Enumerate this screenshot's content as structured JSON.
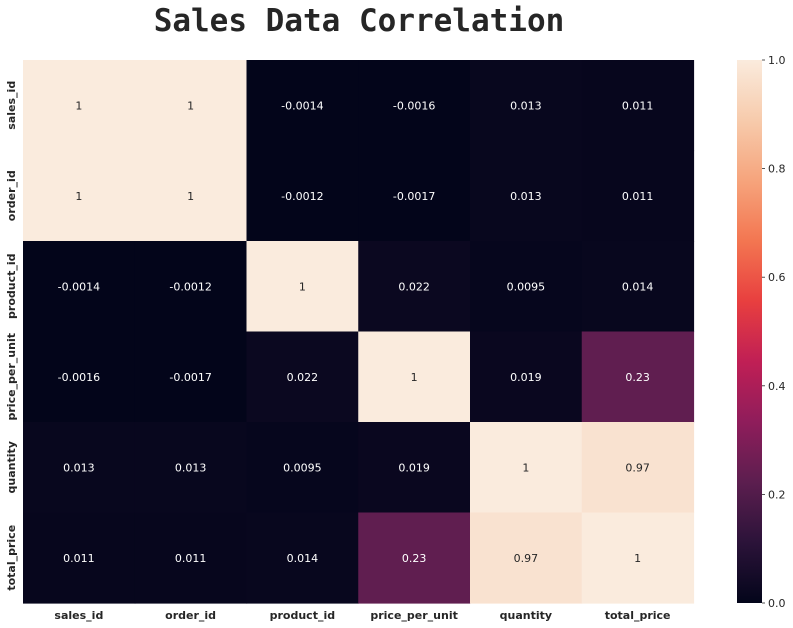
{
  "chart_data": {
    "type": "heatmap",
    "title": "Sales Data Correlation",
    "xlabel": "",
    "ylabel": "",
    "x_categories": [
      "sales_id",
      "order_id",
      "product_id",
      "price_per_unit",
      "quantity",
      "total_price"
    ],
    "y_categories": [
      "sales_id",
      "order_id",
      "product_id",
      "price_per_unit",
      "quantity",
      "total_price"
    ],
    "values": [
      [
        1,
        1,
        -0.0014,
        -0.0016,
        0.013,
        0.011
      ],
      [
        1,
        1,
        -0.0012,
        -0.0017,
        0.013,
        0.011
      ],
      [
        -0.0014,
        -0.0012,
        1,
        0.022,
        0.0095,
        0.014
      ],
      [
        -0.0016,
        -0.0017,
        0.022,
        1,
        0.019,
        0.23
      ],
      [
        0.013,
        0.013,
        0.0095,
        0.019,
        1,
        0.97
      ],
      [
        0.011,
        0.011,
        0.014,
        0.23,
        0.97,
        1
      ]
    ],
    "value_labels": [
      [
        "1",
        "1",
        "-0.0014",
        "-0.0016",
        "0.013",
        "0.011"
      ],
      [
        "1",
        "1",
        "-0.0012",
        "-0.0017",
        "0.013",
        "0.011"
      ],
      [
        "-0.0014",
        "-0.0012",
        "1",
        "0.022",
        "0.0095",
        "0.014"
      ],
      [
        "-0.0016",
        "-0.0017",
        "0.022",
        "1",
        "0.019",
        "0.23"
      ],
      [
        "0.013",
        "0.013",
        "0.0095",
        "0.019",
        "1",
        "0.97"
      ],
      [
        "0.011",
        "0.011",
        "0.014",
        "0.23",
        "0.97",
        "1"
      ]
    ],
    "colorbar": {
      "range": [
        0.0,
        1.0
      ],
      "ticks": [
        0.0,
        0.2,
        0.4,
        0.6,
        0.8,
        1.0
      ],
      "tick_labels": [
        "0.0",
        "0.2",
        "0.4",
        "0.6",
        "0.8",
        "1.0"
      ],
      "colormap": "rocket",
      "colormap_stops": [
        "#03051a",
        "#2b1339",
        "#5c1e4f",
        "#8f1d5b",
        "#c01f55",
        "#e83f3f",
        "#f37651",
        "#f6a47c",
        "#f7cbac",
        "#faebdd"
      ]
    },
    "annotation_colors": {
      "on_dark": "#ffffff",
      "on_light": "#262626"
    },
    "grid": false,
    "legend": "colorbar-right"
  }
}
